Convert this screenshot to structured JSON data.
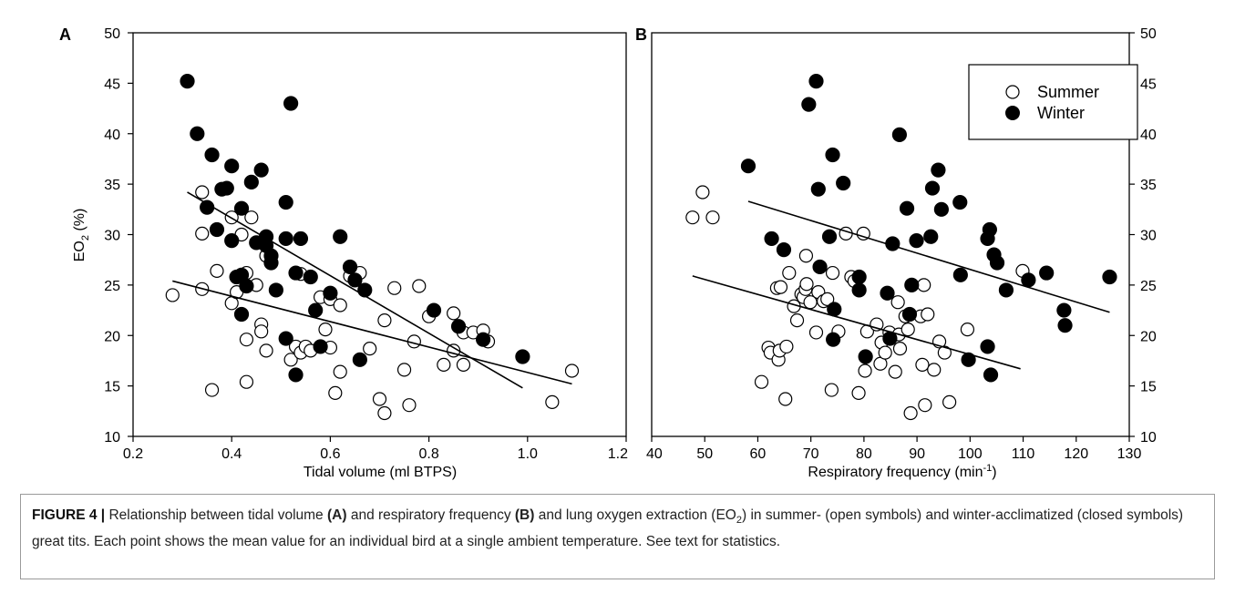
{
  "colors": {
    "axis": "#000000",
    "open_fill": "#ffffff",
    "closed_fill": "#000000",
    "caption_border": "#9a9a9a",
    "caption_text": "#222222"
  },
  "legend": {
    "summer": "Summer",
    "winter": "Winter"
  },
  "caption": {
    "label": "FIGURE 4 |",
    "t1": " Relationship between tidal volume ",
    "b1": "(A)",
    "t2": " and respiratory frequency ",
    "b2": "(B)",
    "t3": " and lung oxygen extraction (EO",
    "sub": "2",
    "t4": ") in summer- (open symbols) and winter-acclimatized (closed symbols) great tits. Each point shows the mean value for an individual bird at a single ambient temperature. See text for statistics."
  },
  "chart_data": [
    {
      "panel": "A",
      "type": "scatter",
      "xlabel": "Tidal volume (ml BTPS)",
      "ylabel": "EO2 (%)",
      "xlim": [
        0.2,
        1.2
      ],
      "ylim": [
        10,
        50
      ],
      "xticks": [
        "0.2",
        "0.4",
        "0.6",
        "0.8",
        "1.0",
        "1.2"
      ],
      "yticks": [
        "10",
        "15",
        "20",
        "25",
        "30",
        "35",
        "40",
        "45",
        "50"
      ],
      "grid": false,
      "series": [
        {
          "name": "Summer",
          "marker": "open circle",
          "points": [
            [
              0.28,
              24
            ],
            [
              0.34,
              24.6
            ],
            [
              0.34,
              30.1
            ],
            [
              0.34,
              34.2
            ],
            [
              0.36,
              14.6
            ],
            [
              0.37,
              26.4
            ],
            [
              0.4,
              23.2
            ],
            [
              0.4,
              31.7
            ],
            [
              0.41,
              24.3
            ],
            [
              0.42,
              30
            ],
            [
              0.43,
              26.2
            ],
            [
              0.43,
              19.6
            ],
            [
              0.43,
              15.4
            ],
            [
              0.44,
              31.7
            ],
            [
              0.45,
              25
            ],
            [
              0.46,
              21.1
            ],
            [
              0.46,
              20.4
            ],
            [
              0.47,
              18.5
            ],
            [
              0.47,
              27.9
            ],
            [
              0.52,
              17.6
            ],
            [
              0.53,
              18.9
            ],
            [
              0.54,
              26.1
            ],
            [
              0.54,
              18.3
            ],
            [
              0.55,
              18.9
            ],
            [
              0.56,
              18.5
            ],
            [
              0.58,
              23.8
            ],
            [
              0.59,
              20.6
            ],
            [
              0.6,
              18.8
            ],
            [
              0.6,
              23.6
            ],
            [
              0.61,
              14.3
            ],
            [
              0.62,
              16.4
            ],
            [
              0.62,
              23
            ],
            [
              0.64,
              25.9
            ],
            [
              0.66,
              26.2
            ],
            [
              0.68,
              18.7
            ],
            [
              0.7,
              13.7
            ],
            [
              0.71,
              12.3
            ],
            [
              0.71,
              21.5
            ],
            [
              0.73,
              24.7
            ],
            [
              0.75,
              16.6
            ],
            [
              0.76,
              13.1
            ],
            [
              0.77,
              19.4
            ],
            [
              0.78,
              24.9
            ],
            [
              0.8,
              21.9
            ],
            [
              0.83,
              17.1
            ],
            [
              0.85,
              22.2
            ],
            [
              0.85,
              18.5
            ],
            [
              0.87,
              17.1
            ],
            [
              0.87,
              20.3
            ],
            [
              0.89,
              20.3
            ],
            [
              0.91,
              20.5
            ],
            [
              0.92,
              19.4
            ],
            [
              1.05,
              13.4
            ],
            [
              1.09,
              16.5
            ]
          ]
        },
        {
          "name": "Winter",
          "marker": "filled circle",
          "points": [
            [
              0.31,
              45.2
            ],
            [
              0.33,
              40
            ],
            [
              0.35,
              32.7
            ],
            [
              0.36,
              37.9
            ],
            [
              0.37,
              30.5
            ],
            [
              0.38,
              34.5
            ],
            [
              0.39,
              34.6
            ],
            [
              0.4,
              36.8
            ],
            [
              0.4,
              29.4
            ],
            [
              0.41,
              25.8
            ],
            [
              0.42,
              32.6
            ],
            [
              0.42,
              22.1
            ],
            [
              0.42,
              26
            ],
            [
              0.43,
              24.9
            ],
            [
              0.44,
              35.2
            ],
            [
              0.45,
              29.2
            ],
            [
              0.46,
              36.4
            ],
            [
              0.47,
              28.9
            ],
            [
              0.47,
              29.8
            ],
            [
              0.48,
              27.9
            ],
            [
              0.48,
              27.2
            ],
            [
              0.49,
              24.5
            ],
            [
              0.51,
              33.2
            ],
            [
              0.51,
              29.6
            ],
            [
              0.51,
              19.7
            ],
            [
              0.52,
              43
            ],
            [
              0.53,
              26.2
            ],
            [
              0.53,
              16.1
            ],
            [
              0.54,
              29.6
            ],
            [
              0.56,
              25.8
            ],
            [
              0.57,
              22.5
            ],
            [
              0.58,
              18.9
            ],
            [
              0.6,
              24.2
            ],
            [
              0.62,
              29.8
            ],
            [
              0.64,
              26.8
            ],
            [
              0.65,
              25.5
            ],
            [
              0.66,
              17.6
            ],
            [
              0.67,
              24.5
            ],
            [
              0.81,
              22.5
            ],
            [
              0.86,
              20.9
            ],
            [
              0.91,
              19.6
            ],
            [
              0.99,
              17.9
            ]
          ]
        }
      ],
      "fit_lines": [
        {
          "series": "Summer",
          "x": [
            0.28,
            1.09
          ],
          "y": [
            25.4,
            15.2
          ]
        },
        {
          "series": "Winter",
          "x": [
            0.31,
            0.99
          ],
          "y": [
            34.2,
            14.8
          ]
        }
      ]
    },
    {
      "panel": "B",
      "type": "scatter",
      "xlabel": "Respiratory frequency (min-1)",
      "xlim": [
        40,
        130
      ],
      "ylim": [
        10,
        50
      ],
      "xticks": [
        "40",
        "50",
        "60",
        "70",
        "80",
        "90",
        "100",
        "110",
        "120",
        "130"
      ],
      "yticks": [
        "10",
        "15",
        "20",
        "25",
        "30",
        "35",
        "40",
        "45",
        "50"
      ],
      "grid": false,
      "legend_position": "top-right",
      "series": [
        {
          "name": "Summer",
          "marker": "open circle",
          "points": [
            [
              47.7,
              31.7
            ],
            [
              49.6,
              34.2
            ],
            [
              51.5,
              31.7
            ],
            [
              60.7,
              15.4
            ],
            [
              62,
              18.8
            ],
            [
              62.4,
              18.3
            ],
            [
              63.6,
              24.7
            ],
            [
              63.9,
              17.6
            ],
            [
              64.1,
              18.5
            ],
            [
              64.3,
              24.8
            ],
            [
              65.2,
              13.7
            ],
            [
              65.4,
              18.9
            ],
            [
              65.9,
              26.2
            ],
            [
              66.8,
              22.9
            ],
            [
              67.4,
              21.5
            ],
            [
              68.2,
              24.1
            ],
            [
              68.6,
              23.8
            ],
            [
              69,
              24.6
            ],
            [
              69.1,
              27.9
            ],
            [
              69.2,
              25.1
            ],
            [
              69.9,
              23.3
            ],
            [
              71,
              20.3
            ],
            [
              71.4,
              24.3
            ],
            [
              72.4,
              23.4
            ],
            [
              73.1,
              23.6
            ],
            [
              73.9,
              14.6
            ],
            [
              74.1,
              26.2
            ],
            [
              75.2,
              20.4
            ],
            [
              76.6,
              30.1
            ],
            [
              77.6,
              25.8
            ],
            [
              78.2,
              25.4
            ],
            [
              79,
              14.3
            ],
            [
              79.9,
              30.1
            ],
            [
              80.2,
              16.5
            ],
            [
              80.6,
              20.4
            ],
            [
              82.4,
              21.1
            ],
            [
              83.1,
              17.2
            ],
            [
              83.3,
              19.3
            ],
            [
              84,
              18.3
            ],
            [
              84.8,
              20.3
            ],
            [
              85.9,
              16.4
            ],
            [
              86.4,
              23.3
            ],
            [
              86.6,
              20.1
            ],
            [
              86.8,
              18.7
            ],
            [
              87.8,
              21.9
            ],
            [
              88.3,
              20.6
            ],
            [
              88.8,
              12.3
            ],
            [
              90.7,
              21.9
            ],
            [
              91,
              17.1
            ],
            [
              91.3,
              25
            ],
            [
              91.5,
              13.1
            ],
            [
              92,
              22.1
            ],
            [
              93.2,
              16.6
            ],
            [
              94.2,
              19.4
            ],
            [
              95.2,
              18.3
            ],
            [
              96.1,
              13.4
            ],
            [
              99.5,
              20.6
            ],
            [
              109.9,
              26.4
            ]
          ]
        },
        {
          "name": "Winter",
          "marker": "filled circle",
          "points": [
            [
              58.2,
              36.8
            ],
            [
              62.6,
              29.6
            ],
            [
              64.9,
              28.5
            ],
            [
              69.6,
              42.9
            ],
            [
              71,
              45.2
            ],
            [
              71.4,
              34.5
            ],
            [
              71.7,
              26.8
            ],
            [
              73.5,
              29.8
            ],
            [
              74.1,
              37.9
            ],
            [
              74.4,
              22.6
            ],
            [
              74.2,
              19.6
            ],
            [
              76.1,
              35.1
            ],
            [
              79.1,
              25.8
            ],
            [
              79.1,
              24.5
            ],
            [
              80.3,
              17.9
            ],
            [
              84.4,
              24.2
            ],
            [
              84.9,
              19.7
            ],
            [
              85.4,
              29.1
            ],
            [
              86.7,
              39.9
            ],
            [
              88.1,
              32.6
            ],
            [
              88.6,
              22.1
            ],
            [
              89,
              25
            ],
            [
              89.9,
              29.4
            ],
            [
              92.6,
              29.8
            ],
            [
              92.9,
              34.6
            ],
            [
              94,
              36.4
            ],
            [
              94.6,
              32.5
            ],
            [
              98.1,
              33.2
            ],
            [
              98.2,
              26
            ],
            [
              99.7,
              17.6
            ],
            [
              103.3,
              18.9
            ],
            [
              103.3,
              29.6
            ],
            [
              103.7,
              30.5
            ],
            [
              103.9,
              16.1
            ],
            [
              104.5,
              28
            ],
            [
              105.1,
              27.2
            ],
            [
              106.8,
              24.5
            ],
            [
              111,
              25.5
            ],
            [
              114.4,
              26.2
            ],
            [
              117.7,
              22.5
            ],
            [
              117.9,
              21
            ],
            [
              126.3,
              25.8
            ]
          ]
        }
      ],
      "fit_lines": [
        {
          "series": "Summer",
          "x": [
            47.7,
            109.5
          ],
          "y": [
            25.9,
            16.7
          ]
        },
        {
          "series": "Winter",
          "x": [
            58.2,
            126.3
          ],
          "y": [
            33.3,
            22.3
          ]
        }
      ]
    }
  ],
  "panels": [
    {
      "letter": "A",
      "xlabel": "Tidal volume (ml BTPS)",
      "ylabel_main": "EO",
      "ylabel_sub": "2",
      "ylabel_end": " (%)"
    },
    {
      "letter": "B",
      "xlabel_main": "Respiratory frequency (min",
      "xlabel_sup": "-1",
      "xlabel_end": ")"
    }
  ]
}
